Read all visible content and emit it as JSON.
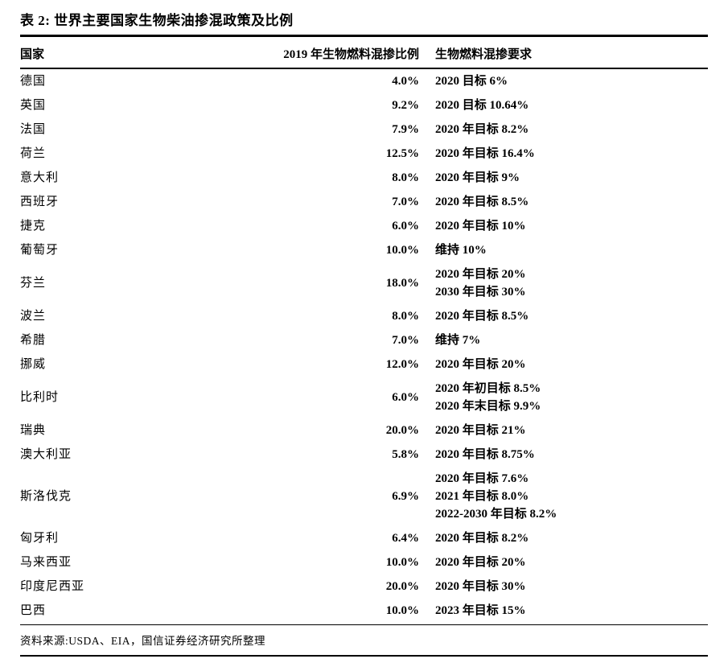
{
  "page": {
    "title": "表 2: 世界主要国家生物柴油掺混政策及比例",
    "source": "资料来源:USDA、EIA，国信证券经济研究所整理"
  },
  "table": {
    "columns": [
      "国家",
      "2019 年生物燃料混掺比例",
      "生物燃料混掺要求"
    ],
    "rows": [
      {
        "country": "德国",
        "ratio": "4.0%",
        "requirements": [
          "2020 目标 6%"
        ]
      },
      {
        "country": "英国",
        "ratio": "9.2%",
        "requirements": [
          "2020 目标 10.64%"
        ]
      },
      {
        "country": "法国",
        "ratio": "7.9%",
        "requirements": [
          "2020 年目标 8.2%"
        ]
      },
      {
        "country": "荷兰",
        "ratio": "12.5%",
        "requirements": [
          "2020 年目标 16.4%"
        ]
      },
      {
        "country": "意大利",
        "ratio": "8.0%",
        "requirements": [
          "2020 年目标 9%"
        ]
      },
      {
        "country": "西班牙",
        "ratio": "7.0%",
        "requirements": [
          "2020 年目标 8.5%"
        ]
      },
      {
        "country": "捷克",
        "ratio": "6.0%",
        "requirements": [
          "2020 年目标 10%"
        ]
      },
      {
        "country": "葡萄牙",
        "ratio": "10.0%",
        "requirements": [
          "维持 10%"
        ]
      },
      {
        "country": "芬兰",
        "ratio": "18.0%",
        "requirements": [
          "2020 年目标 20%",
          "2030 年目标 30%"
        ]
      },
      {
        "country": "波兰",
        "ratio": "8.0%",
        "requirements": [
          "2020 年目标 8.5%"
        ]
      },
      {
        "country": "希腊",
        "ratio": "7.0%",
        "requirements": [
          "维持 7%"
        ]
      },
      {
        "country": "挪威",
        "ratio": "12.0%",
        "requirements": [
          "2020 年目标 20%"
        ]
      },
      {
        "country": "比利时",
        "ratio": "6.0%",
        "requirements": [
          "2020 年初目标 8.5%",
          "2020 年末目标 9.9%"
        ]
      },
      {
        "country": "瑞典",
        "ratio": "20.0%",
        "requirements": [
          "2020 年目标 21%"
        ]
      },
      {
        "country": "澳大利亚",
        "ratio": "5.8%",
        "requirements": [
          "2020 年目标 8.75%"
        ]
      },
      {
        "country": "斯洛伐克",
        "ratio": "6.9%",
        "requirements": [
          "2020 年目标 7.6%",
          "2021 年目标 8.0%",
          "2022-2030 年目标 8.2%"
        ]
      },
      {
        "country": "匈牙利",
        "ratio": "6.4%",
        "requirements": [
          "2020 年目标 8.2%"
        ]
      },
      {
        "country": "马来西亚",
        "ratio": "10.0%",
        "requirements": [
          "2020 年目标 20%"
        ]
      },
      {
        "country": "印度尼西亚",
        "ratio": "20.0%",
        "requirements": [
          "2020 年目标 30%"
        ]
      },
      {
        "country": "巴西",
        "ratio": "10.0%",
        "requirements": [
          "2023 年目标 15%"
        ]
      }
    ]
  }
}
